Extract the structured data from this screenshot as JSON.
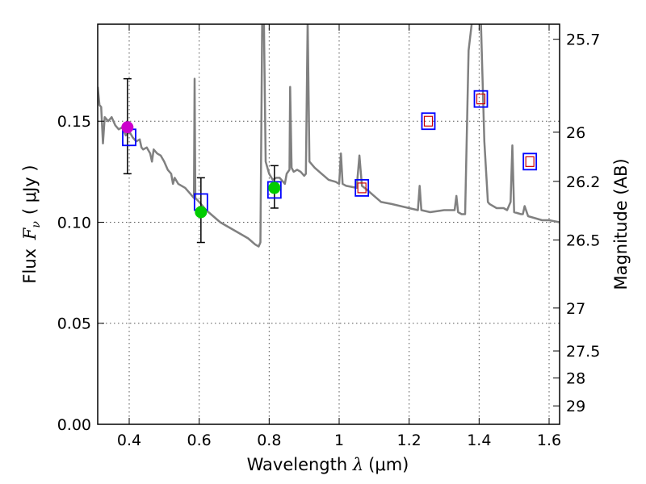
{
  "chart_data": {
    "type": "scatter",
    "xlabel_prefix": "Wavelength ",
    "xlabel_symbol": "λ",
    "xlabel_unit": "(μm)",
    "ylabel_prefix": "Flux ",
    "ylabel_symbol": "F",
    "ylabel_sub": "ν",
    "ylabel_unit": "( μJy )",
    "y2label": "Magnitude (AB)",
    "xlim": [
      0.31,
      1.63
    ],
    "ylim": [
      0.0,
      0.198
    ],
    "x_ticks": [
      0.4,
      0.6,
      0.8,
      1.0,
      1.2,
      1.4,
      1.6
    ],
    "x_tick_labels": [
      "0.4",
      "0.6",
      "0.8",
      "1",
      "1.2",
      "1.4",
      "1.6"
    ],
    "y_ticks": [
      0.0,
      0.05,
      0.1,
      0.15
    ],
    "y_tick_labels": [
      "0.00",
      "0.05",
      "0.10",
      "0.15"
    ],
    "y2_ticks": [
      25.7,
      26,
      26.2,
      26.5,
      27,
      27.5,
      28,
      29
    ],
    "y2_tick_labels": [
      "25.7",
      "26",
      "26.2",
      "26.5",
      "27",
      "27.5",
      "28",
      "29"
    ],
    "grid": true,
    "colors": {
      "model": "#808080",
      "model_boxes": "#0000ff",
      "upper_limit_boxes": "#cc0000",
      "point_blue_band": "#cc00cc",
      "point_detections": "#00cc00",
      "errorbar": "#000000"
    },
    "model_spectrum": [
      [
        0.31,
        0.167
      ],
      [
        0.315,
        0.158
      ],
      [
        0.32,
        0.157
      ],
      [
        0.325,
        0.139
      ],
      [
        0.33,
        0.152
      ],
      [
        0.34,
        0.15
      ],
      [
        0.35,
        0.152
      ],
      [
        0.36,
        0.148
      ],
      [
        0.37,
        0.146
      ],
      [
        0.38,
        0.147
      ],
      [
        0.39,
        0.143
      ],
      [
        0.4,
        0.145
      ],
      [
        0.41,
        0.142
      ],
      [
        0.42,
        0.14
      ],
      [
        0.43,
        0.141
      ],
      [
        0.435,
        0.137
      ],
      [
        0.44,
        0.136
      ],
      [
        0.45,
        0.137
      ],
      [
        0.46,
        0.134
      ],
      [
        0.465,
        0.13
      ],
      [
        0.47,
        0.136
      ],
      [
        0.48,
        0.134
      ],
      [
        0.49,
        0.133
      ],
      [
        0.5,
        0.13
      ],
      [
        0.51,
        0.126
      ],
      [
        0.52,
        0.124
      ],
      [
        0.525,
        0.119
      ],
      [
        0.53,
        0.122
      ],
      [
        0.54,
        0.119
      ],
      [
        0.55,
        0.118
      ],
      [
        0.56,
        0.117
      ],
      [
        0.57,
        0.115
      ],
      [
        0.58,
        0.113
      ],
      [
        0.585,
        0.112
      ],
      [
        0.587,
        0.171
      ],
      [
        0.589,
        0.112
      ],
      [
        0.6,
        0.11
      ],
      [
        0.62,
        0.106
      ],
      [
        0.64,
        0.103
      ],
      [
        0.66,
        0.1
      ],
      [
        0.68,
        0.098
      ],
      [
        0.7,
        0.096
      ],
      [
        0.72,
        0.094
      ],
      [
        0.74,
        0.092
      ],
      [
        0.76,
        0.089
      ],
      [
        0.77,
        0.088
      ],
      [
        0.775,
        0.09
      ],
      [
        0.78,
        0.2
      ],
      [
        0.785,
        0.2
      ],
      [
        0.79,
        0.13
      ],
      [
        0.8,
        0.124
      ],
      [
        0.81,
        0.121
      ],
      [
        0.82,
        0.122
      ],
      [
        0.83,
        0.122
      ],
      [
        0.84,
        0.12
      ],
      [
        0.845,
        0.119
      ],
      [
        0.85,
        0.124
      ],
      [
        0.858,
        0.126
      ],
      [
        0.86,
        0.167
      ],
      [
        0.864,
        0.127
      ],
      [
        0.87,
        0.125
      ],
      [
        0.88,
        0.126
      ],
      [
        0.89,
        0.125
      ],
      [
        0.9,
        0.123
      ],
      [
        0.905,
        0.124
      ],
      [
        0.91,
        0.2
      ],
      [
        0.915,
        0.13
      ],
      [
        0.93,
        0.127
      ],
      [
        0.95,
        0.124
      ],
      [
        0.97,
        0.121
      ],
      [
        0.99,
        0.12
      ],
      [
        1.0,
        0.119
      ],
      [
        1.005,
        0.134
      ],
      [
        1.01,
        0.119
      ],
      [
        1.02,
        0.118
      ],
      [
        1.05,
        0.117
      ],
      [
        1.058,
        0.133
      ],
      [
        1.065,
        0.118
      ],
      [
        1.08,
        0.116
      ],
      [
        1.1,
        0.113
      ],
      [
        1.12,
        0.11
      ],
      [
        1.15,
        0.109
      ],
      [
        1.2,
        0.107
      ],
      [
        1.225,
        0.106
      ],
      [
        1.23,
        0.118
      ],
      [
        1.235,
        0.106
      ],
      [
        1.26,
        0.105
      ],
      [
        1.3,
        0.106
      ],
      [
        1.33,
        0.106
      ],
      [
        1.335,
        0.113
      ],
      [
        1.34,
        0.105
      ],
      [
        1.35,
        0.104
      ],
      [
        1.36,
        0.104
      ],
      [
        1.37,
        0.185
      ],
      [
        1.38,
        0.2
      ],
      [
        1.395,
        0.2
      ],
      [
        1.405,
        0.2
      ],
      [
        1.415,
        0.14
      ],
      [
        1.425,
        0.11
      ],
      [
        1.43,
        0.109
      ],
      [
        1.45,
        0.107
      ],
      [
        1.47,
        0.107
      ],
      [
        1.48,
        0.106
      ],
      [
        1.49,
        0.11
      ],
      [
        1.495,
        0.138
      ],
      [
        1.5,
        0.105
      ],
      [
        1.52,
        0.104
      ],
      [
        1.525,
        0.104
      ],
      [
        1.53,
        0.108
      ],
      [
        1.54,
        0.103
      ],
      [
        1.56,
        0.102
      ],
      [
        1.58,
        0.101
      ],
      [
        1.6,
        0.101
      ],
      [
        1.63,
        0.1
      ]
    ],
    "model_boxes": [
      {
        "x": 0.4,
        "y": 0.142
      },
      {
        "x": 0.605,
        "y": 0.11
      },
      {
        "x": 0.815,
        "y": 0.116
      },
      {
        "x": 1.065,
        "y": 0.117
      },
      {
        "x": 1.255,
        "y": 0.15
      },
      {
        "x": 1.405,
        "y": 0.161
      },
      {
        "x": 1.545,
        "y": 0.13
      }
    ],
    "upper_limit_boxes": [
      {
        "x": 1.065,
        "y": 0.117
      },
      {
        "x": 1.255,
        "y": 0.15
      },
      {
        "x": 1.405,
        "y": 0.161
      },
      {
        "x": 1.545,
        "y": 0.13
      }
    ],
    "measurements": [
      {
        "x": 0.395,
        "y": 0.147,
        "yerr_low": 0.124,
        "yerr_high": 0.171,
        "color": "#cc00cc"
      },
      {
        "x": 0.605,
        "y": 0.105,
        "yerr_low": 0.09,
        "yerr_high": 0.122,
        "color": "#00cc00"
      },
      {
        "x": 0.815,
        "y": 0.117,
        "yerr_low": 0.107,
        "yerr_high": 0.128,
        "color": "#00cc00"
      }
    ]
  }
}
